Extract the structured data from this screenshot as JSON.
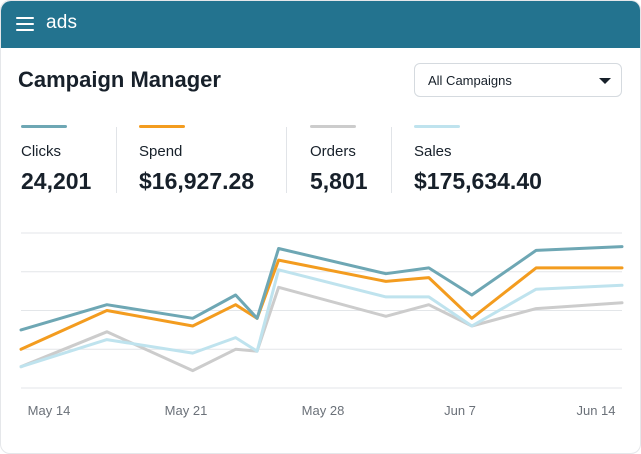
{
  "header": {
    "brand": "ads",
    "background": "#23738f"
  },
  "page": {
    "title": "Campaign Manager"
  },
  "filter": {
    "selected": "All Campaigns"
  },
  "metrics": [
    {
      "label": "Clicks",
      "value": "24,201",
      "color": "#6ea7b4"
    },
    {
      "label": "Spend",
      "value": "$16,927.28",
      "color": "#f39c1f"
    },
    {
      "label": "Orders",
      "value": "5,801",
      "color": "#cccccc"
    },
    {
      "label": "Sales",
      "value": "$175,634.40",
      "color": "#bfe3ee"
    }
  ],
  "chart_data": {
    "type": "line",
    "x_ticks": [
      "May 14",
      "May 21",
      "May 28",
      "Jun 7",
      "Jun 14"
    ],
    "x": [
      0,
      4,
      8,
      10,
      11,
      12,
      17,
      19,
      21,
      24,
      28
    ],
    "grid": true,
    "ylim": [
      0,
      4
    ],
    "series": [
      {
        "color": "#6ea7b4",
        "values": [
          1.5,
          2.15,
          1.8,
          2.4,
          1.8,
          3.6,
          2.95,
          3.1,
          2.4,
          3.55,
          3.65
        ]
      },
      {
        "color": "#f39c1f",
        "values": [
          1.0,
          2.0,
          1.6,
          2.15,
          1.8,
          3.3,
          2.75,
          2.85,
          1.8,
          3.1,
          3.1
        ]
      },
      {
        "color": "#cccccc",
        "values": [
          0.55,
          1.45,
          0.45,
          1.0,
          0.95,
          2.6,
          1.85,
          2.15,
          1.6,
          2.05,
          2.2
        ]
      },
      {
        "color": "#bfe3ee",
        "values": [
          0.55,
          1.25,
          0.9,
          1.3,
          0.95,
          3.05,
          2.35,
          2.35,
          1.6,
          2.55,
          2.65
        ]
      }
    ]
  }
}
